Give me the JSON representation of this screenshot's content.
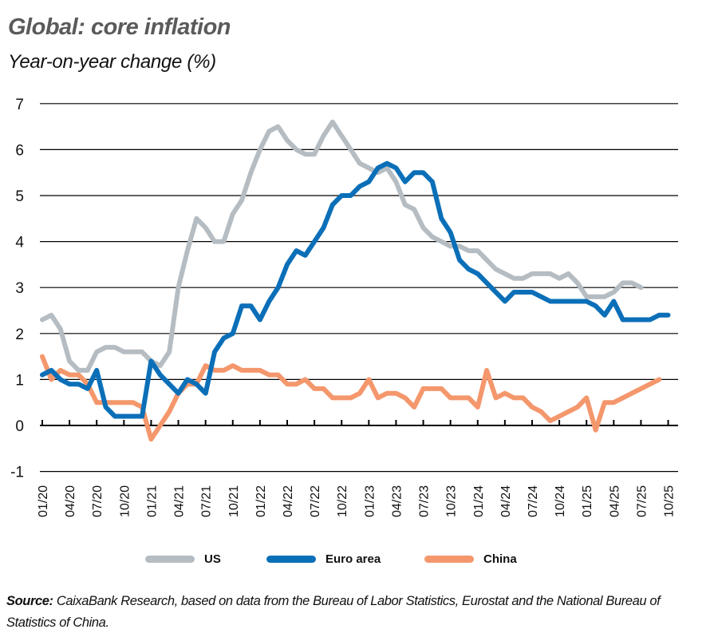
{
  "header": {
    "title": "Global: core inflation",
    "subtitle": "Year-on-year change (%)"
  },
  "legend": [
    {
      "name": "US",
      "color": "#B5BDC3"
    },
    {
      "name": "Euro area",
      "color": "#0B6FB8"
    },
    {
      "name": "China",
      "color": "#F4976C"
    }
  ],
  "footer": {
    "source_label": "Source:",
    "source_text": " CaixaBank Research, based on data from the Bureau of Labor Statistics, Eurostat and the National Bureau of Statistics of China."
  },
  "chart_data": {
    "type": "line",
    "title": "Global: core inflation",
    "subtitle": "Year-on-year change (%)",
    "xlabel": "",
    "ylabel": "Year-on-year change (%)",
    "ylim": [
      -1,
      7
    ],
    "yticks": [
      -1,
      0,
      1,
      2,
      3,
      4,
      5,
      6,
      7
    ],
    "grid": true,
    "legend_position": "bottom",
    "tick_labels": [
      "01/20",
      "04/20",
      "07/20",
      "10/20",
      "01/21",
      "04/21",
      "07/21",
      "10/21",
      "01/22",
      "04/22",
      "07/22",
      "10/22",
      "01/23",
      "04/23",
      "07/23",
      "10/23",
      "01/24",
      "04/24",
      "07/24",
      "10/24",
      "01/25",
      "04/25",
      "07/25",
      "10/25"
    ],
    "x_start": "01/20",
    "x_end": "10/25",
    "frequency": "monthly",
    "series": [
      {
        "name": "US",
        "color": "#B5BDC3",
        "values": [
          2.3,
          2.4,
          2.1,
          1.4,
          1.2,
          1.2,
          1.6,
          1.7,
          1.7,
          1.6,
          1.6,
          1.6,
          1.4,
          1.3,
          1.6,
          3.0,
          3.8,
          4.5,
          4.3,
          4.0,
          4.0,
          4.6,
          4.9,
          5.5,
          6.0,
          6.4,
          6.5,
          6.2,
          6.0,
          5.9,
          5.9,
          6.3,
          6.6,
          6.3,
          6.0,
          5.7,
          5.6,
          5.5,
          5.6,
          5.3,
          4.8,
          4.7,
          4.3,
          4.1,
          4.0,
          3.9,
          3.9,
          3.8,
          3.8,
          3.6,
          3.4,
          3.3,
          3.2,
          3.2,
          3.3,
          3.3,
          3.3,
          3.2,
          3.3,
          3.1,
          2.8,
          2.8,
          2.8,
          2.9,
          3.1,
          3.1,
          3.0
        ]
      },
      {
        "name": "Euro area",
        "color": "#0B6FB8",
        "values": [
          1.1,
          1.2,
          1.0,
          0.9,
          0.9,
          0.8,
          1.2,
          0.4,
          0.2,
          0.2,
          0.2,
          0.2,
          1.4,
          1.1,
          0.9,
          0.7,
          1.0,
          0.9,
          0.7,
          1.6,
          1.9,
          2.0,
          2.6,
          2.6,
          2.3,
          2.7,
          3.0,
          3.5,
          3.8,
          3.7,
          4.0,
          4.3,
          4.8,
          5.0,
          5.0,
          5.2,
          5.3,
          5.6,
          5.7,
          5.6,
          5.3,
          5.5,
          5.5,
          5.3,
          4.5,
          4.2,
          3.6,
          3.4,
          3.3,
          3.1,
          2.9,
          2.7,
          2.9,
          2.9,
          2.9,
          2.8,
          2.7,
          2.7,
          2.7,
          2.7,
          2.7,
          2.6,
          2.4,
          2.7,
          2.3,
          2.3,
          2.3,
          2.3,
          2.4,
          2.4
        ]
      },
      {
        "name": "China",
        "color": "#F4976C",
        "values": [
          1.5,
          1.0,
          1.2,
          1.1,
          1.1,
          0.9,
          0.5,
          0.5,
          0.5,
          0.5,
          0.5,
          0.4,
          -0.3,
          0.0,
          0.3,
          0.7,
          0.9,
          0.9,
          1.3,
          1.2,
          1.2,
          1.3,
          1.2,
          1.2,
          1.2,
          1.1,
          1.1,
          0.9,
          0.9,
          1.0,
          0.8,
          0.8,
          0.6,
          0.6,
          0.6,
          0.7,
          1.0,
          0.6,
          0.7,
          0.7,
          0.6,
          0.4,
          0.8,
          0.8,
          0.8,
          0.6,
          0.6,
          0.6,
          0.4,
          1.2,
          0.6,
          0.7,
          0.6,
          0.6,
          0.4,
          0.3,
          0.1,
          0.2,
          0.3,
          0.4,
          0.6,
          -0.1,
          0.5,
          0.5,
          0.6,
          0.7,
          0.8,
          0.9,
          1.0
        ]
      }
    ]
  }
}
